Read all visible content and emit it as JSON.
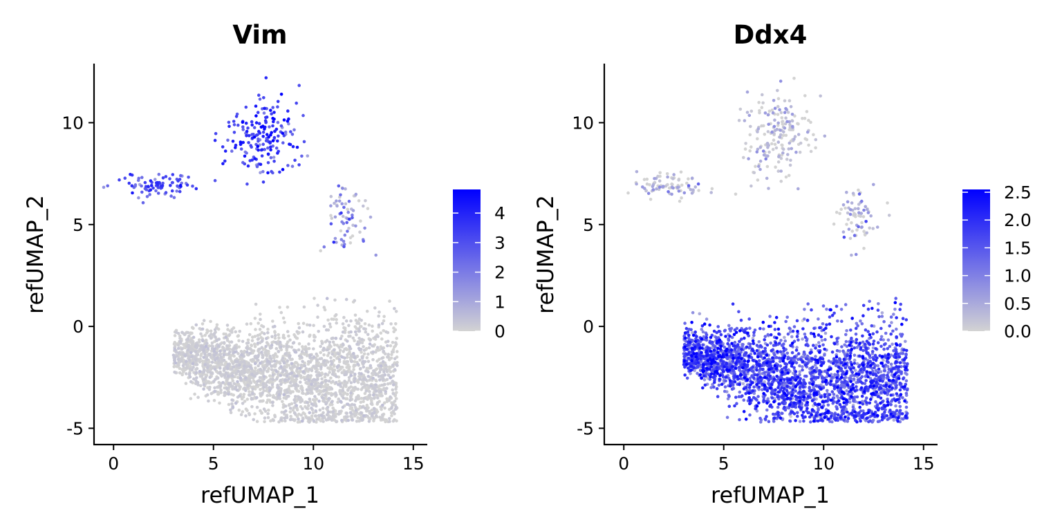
{
  "chart_data": [
    {
      "type": "scatter",
      "title": "Vim",
      "xlabel": "refUMAP_1",
      "ylabel": "refUMAP_2",
      "xlim": [
        -0.7,
        15.7
      ],
      "ylim": [
        -5.8,
        12.9
      ],
      "xticks": [
        0,
        5,
        10,
        15
      ],
      "yticks": [
        -5,
        0,
        5,
        10
      ],
      "grid": false,
      "color_scale": {
        "low": "#d3d3d3",
        "high": "#0000ff",
        "min": 0,
        "max": 4.8,
        "ticks": [
          0,
          1,
          2,
          3,
          4
        ]
      },
      "legend_position": "right",
      "clusters": [
        {
          "name": "main",
          "cx": 9.3,
          "cy": -2.0,
          "spread_x": 3.4,
          "spread_y": 1.5,
          "n": 2600,
          "expr_mean": 0.05,
          "expr_sd": 0.15,
          "expr_max": 1.2
        },
        {
          "name": "top",
          "cx": 7.6,
          "cy": 9.3,
          "spread_x": 0.9,
          "spread_y": 1.0,
          "n": 190,
          "expr_mean": 3.3,
          "expr_sd": 0.9,
          "expr_max": 4.8
        },
        {
          "name": "left",
          "cx": 2.3,
          "cy": 6.9,
          "spread_x": 0.9,
          "spread_y": 0.3,
          "n": 85,
          "expr_mean": 3.0,
          "expr_sd": 0.8,
          "expr_max": 4.5
        },
        {
          "name": "right",
          "cx": 11.7,
          "cy": 5.2,
          "spread_x": 0.5,
          "spread_y": 0.8,
          "n": 70,
          "expr_mean": 1.1,
          "expr_sd": 1.1,
          "expr_max": 3.8
        }
      ]
    },
    {
      "type": "scatter",
      "title": "Ddx4",
      "xlabel": "refUMAP_1",
      "ylabel": "refUMAP_2",
      "xlim": [
        -0.7,
        15.7
      ],
      "ylim": [
        -5.8,
        12.9
      ],
      "xticks": [
        0,
        5,
        10,
        15
      ],
      "yticks": [
        -5,
        0,
        5,
        10
      ],
      "grid": false,
      "color_scale": {
        "low": "#d3d3d3",
        "high": "#0000ff",
        "min": 0,
        "max": 2.55,
        "ticks": [
          0.0,
          0.5,
          1.0,
          1.5,
          2.0,
          2.5
        ]
      },
      "legend_position": "right",
      "clusters": [
        {
          "name": "main",
          "cx": 9.3,
          "cy": -2.0,
          "spread_x": 3.4,
          "spread_y": 1.5,
          "n": 2600,
          "expr_mean": 1.55,
          "expr_sd": 0.55,
          "expr_max": 2.55
        },
        {
          "name": "top",
          "cx": 7.6,
          "cy": 9.3,
          "spread_x": 0.9,
          "spread_y": 1.0,
          "n": 190,
          "expr_mean": 0.1,
          "expr_sd": 0.35,
          "expr_max": 1.5
        },
        {
          "name": "left",
          "cx": 2.3,
          "cy": 6.9,
          "spread_x": 0.9,
          "spread_y": 0.3,
          "n": 85,
          "expr_mean": 0.15,
          "expr_sd": 0.45,
          "expr_max": 1.8
        },
        {
          "name": "right",
          "cx": 11.7,
          "cy": 5.2,
          "spread_x": 0.5,
          "spread_y": 0.8,
          "n": 70,
          "expr_mean": 0.25,
          "expr_sd": 0.5,
          "expr_max": 1.8
        }
      ]
    }
  ]
}
